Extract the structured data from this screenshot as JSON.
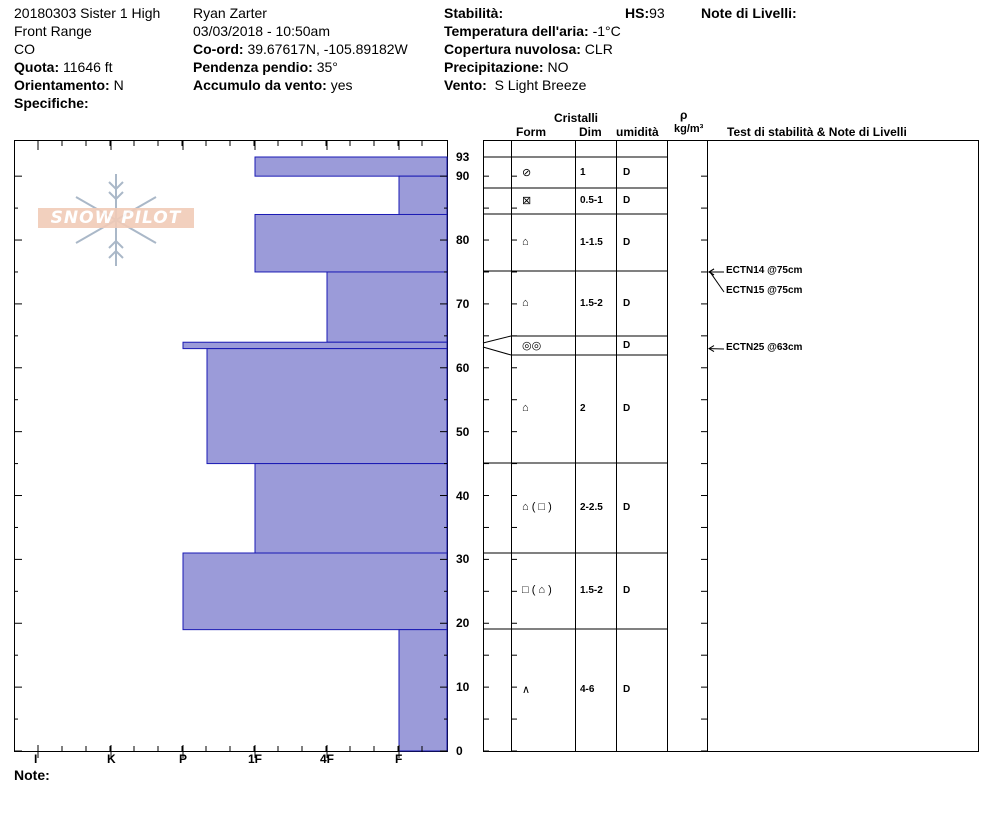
{
  "header": {
    "col1": {
      "line1": "20180303 Sister 1 High",
      "line2": "Front Range",
      "line3": "CO",
      "quota_label": "Quota:",
      "quota_value": "11646 ft",
      "orient_label": "Orientamento:",
      "orient_value": "N",
      "spec_label": "Specifiche:"
    },
    "col2": {
      "observer": "Ryan Zarter",
      "datetime": "03/03/2018 - 10:50am",
      "coord_label": "Co-ord:",
      "coord_value": "39.67617N, -105.89182W",
      "slope_label": "Pendenza pendio:",
      "slope_value": "35°",
      "wind_load_label": "Accumulo da vento:",
      "wind_load_value": "yes"
    },
    "col3": {
      "stab_label": "Stabilità:",
      "hs_label": "HS:",
      "hs_value": "93",
      "temp_label": "Temperatura dell'aria:",
      "temp_value": "-1°C",
      "cloud_label": "Copertura nuvolosa:",
      "cloud_value": "CLR",
      "precip_label": "Precipitazione:",
      "precip_value": "NO",
      "wind_label": "Vento:",
      "wind_value": "S Light Breeze"
    },
    "levels_label": "Note di Livelli:"
  },
  "logo_text": "SNOW PILOT",
  "table_headers": {
    "cristalli": "Cristalli",
    "form": "Form",
    "dim": "Dim",
    "umidita": "umidità",
    "rho": "ρ",
    "kgm3": "kg/m³",
    "tests": "Test di stabilità & Note di Livelli"
  },
  "notes_label": "Note:",
  "chart_data": {
    "type": "bar",
    "title": "",
    "ylabel": "",
    "ylim": [
      0,
      93
    ],
    "y_ticks": [
      0,
      10,
      20,
      30,
      40,
      50,
      60,
      70,
      80,
      90
    ],
    "y_top_label": "93",
    "hardness_scale": [
      "I",
      "K",
      "P",
      "1F",
      "4F",
      "F"
    ],
    "layers": [
      {
        "bottom": 90,
        "top": 93,
        "hardness": "1F"
      },
      {
        "bottom": 84,
        "top": 90,
        "hardness": "F"
      },
      {
        "bottom": 75,
        "top": 84,
        "hardness": "1F"
      },
      {
        "bottom": 64,
        "top": 75,
        "hardness": "4F"
      },
      {
        "bottom": 63,
        "top": 64,
        "hardness": "P-"
      },
      {
        "bottom": 45,
        "top": 63,
        "hardness": "1F-"
      },
      {
        "bottom": 31,
        "top": 45,
        "hardness": "1F"
      },
      {
        "bottom": 19,
        "top": 31,
        "hardness": "P"
      },
      {
        "bottom": 0,
        "top": 19,
        "hardness": "F"
      }
    ],
    "bar_color": "#9b9bd9",
    "bar_edge": "#1a1ab4",
    "crystal_rows": [
      {
        "form": "⊘",
        "form_icon": "rounded-icon",
        "dim": "1",
        "moisture": "D"
      },
      {
        "form": "⊠",
        "form_icon": "faceted-icon",
        "dim": "0.5-1",
        "moisture": "D"
      },
      {
        "form": "⌂",
        "form_icon": "faceted-rounded-icon",
        "dim": "1-1.5",
        "moisture": "D"
      },
      {
        "form": "⌂",
        "form_icon": "faceted-rounded-icon",
        "dim": "1.5-2",
        "moisture": "D"
      },
      {
        "form": "◎◎",
        "form_icon": "melt-freeze-icon",
        "dim": "",
        "moisture": "D"
      },
      {
        "form": "⌂",
        "form_icon": "faceted-rounded-icon",
        "dim": "2",
        "moisture": "D"
      },
      {
        "form": "⌂ ( □ )",
        "form_icon": "faceted-rounded-icon",
        "dim": "2-2.5",
        "moisture": "D"
      },
      {
        "form": "□ ( ⌂ )",
        "form_icon": "faceted-icon",
        "dim": "1.5-2",
        "moisture": "D"
      },
      {
        "form": "∧",
        "form_icon": "depth-hoar-icon",
        "dim": "4-6",
        "moisture": "D"
      }
    ],
    "tests": [
      {
        "label": "ECTN14 @75cm",
        "depth": 75
      },
      {
        "label": "ECTN15 @75cm",
        "depth": 75
      },
      {
        "label": "ECTN25 @63cm",
        "depth": 63
      }
    ]
  }
}
